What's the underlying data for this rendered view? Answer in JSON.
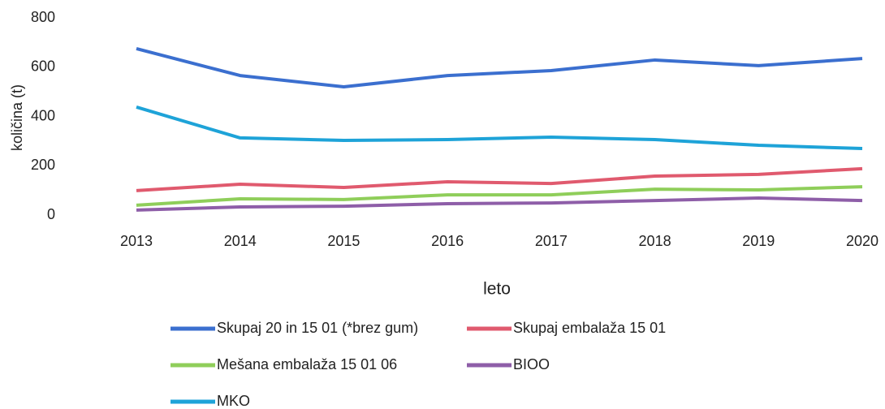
{
  "chart_data": {
    "type": "line",
    "x_label": "leto",
    "y_label": "količina (t)",
    "categories": [
      "2013",
      "2014",
      "2015",
      "2016",
      "2017",
      "2018",
      "2019",
      "2020"
    ],
    "ylim": [
      0,
      800
    ],
    "yticks": [
      0,
      200,
      400,
      600,
      800
    ],
    "grid": false,
    "series": [
      {
        "name": "Skupaj 20 in 15 01 (*brez gum)",
        "color": "#3b6fcf",
        "values": [
          675,
          566,
          520,
          566,
          586,
          629,
          606,
          635
        ]
      },
      {
        "name": "Skupaj embalaža 15 01",
        "color": "#e05a6e",
        "values": [
          99,
          125,
          112,
          135,
          128,
          158,
          165,
          188
        ]
      },
      {
        "name": "Mešana embalaža 15 01 06",
        "color": "#8fce5a",
        "values": [
          40,
          66,
          63,
          82,
          82,
          105,
          102,
          115
        ]
      },
      {
        "name": "BIOO",
        "color": "#8e5ea8",
        "values": [
          20,
          33,
          36,
          46,
          49,
          59,
          69,
          59
        ]
      },
      {
        "name": "MKO",
        "color": "#1ea3d8",
        "values": [
          438,
          313,
          303,
          306,
          316,
          306,
          283,
          270
        ]
      }
    ]
  }
}
